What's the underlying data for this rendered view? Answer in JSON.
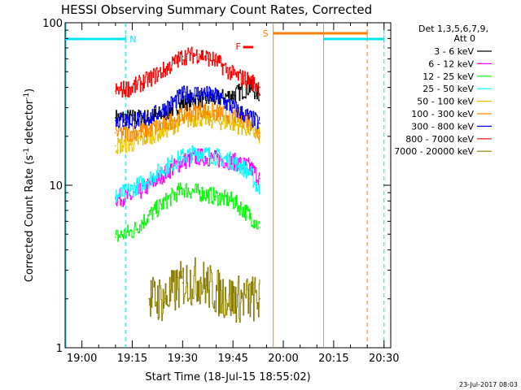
{
  "chart_data": {
    "type": "line",
    "title": "HESSI Observing Summary Count Rates, Corrected",
    "xlabel": "Start Time (18-Jul-15 18:55:02)",
    "ylabel": "Corrected Count Rate (s",
    "ylabel_sup1": "-1",
    "ylabel_mid": " detector",
    "ylabel_sup2": "-1",
    "ylabel_end": ")",
    "y_scale": "log",
    "ylim": [
      1,
      100
    ],
    "y_ticks": [
      {
        "value": 1,
        "label": "1"
      },
      {
        "value": 10,
        "label": "10"
      },
      {
        "value": 100,
        "label": "100"
      }
    ],
    "xlim": [
      "18:55",
      "20:32"
    ],
    "x_ticks": [
      {
        "value": "19:00",
        "label": "19:00"
      },
      {
        "value": "19:15",
        "label": "19:15"
      },
      {
        "value": "19:30",
        "label": "19:30"
      },
      {
        "value": "19:45",
        "label": "19:45"
      },
      {
        "value": "20:00",
        "label": "20:00"
      },
      {
        "value": "20:15",
        "label": "20:15"
      },
      {
        "value": "20:30",
        "label": "20:30"
      }
    ],
    "legend_header": [
      "Det 1,3,5,6,7,9,",
      "Att 0"
    ],
    "legend_position": "right",
    "series": [
      {
        "name": "3 - 6 keV",
        "color": "#000000",
        "x": [
          "19:10",
          "19:15",
          "19:20",
          "19:25",
          "19:30",
          "19:35",
          "19:40",
          "19:45",
          "19:50",
          "19:53"
        ],
        "values": [
          26,
          26,
          26,
          28,
          32,
          34,
          34,
          36,
          40,
          36
        ]
      },
      {
        "name": "6 - 12 keV",
        "color": "#ff00ff",
        "x": [
          "19:10",
          "19:15",
          "19:20",
          "19:25",
          "19:30",
          "19:35",
          "19:40",
          "19:45",
          "19:50",
          "19:53"
        ],
        "values": [
          8.3,
          8.5,
          10,
          12,
          14,
          15,
          14.5,
          14,
          13,
          11
        ]
      },
      {
        "name": "12 - 25 keV",
        "color": "#00ff00",
        "x": [
          "19:10",
          "19:15",
          "19:20",
          "19:25",
          "19:30",
          "19:35",
          "19:40",
          "19:45",
          "19:50",
          "19:53"
        ],
        "values": [
          4.8,
          5.2,
          6.5,
          8.0,
          9.5,
          9.0,
          8.5,
          8.0,
          6.5,
          5.5
        ]
      },
      {
        "name": "25 - 50 keV",
        "color": "#00ffff",
        "x": [
          "19:10",
          "19:15",
          "19:20",
          "19:25",
          "19:30",
          "19:35",
          "19:40",
          "19:45",
          "19:50",
          "19:53"
        ],
        "values": [
          8.5,
          9.5,
          11,
          13,
          15,
          16,
          15,
          14,
          12,
          9
        ]
      },
      {
        "name": "50 - 100 keV",
        "color": "#e8c000",
        "x": [
          "19:10",
          "19:15",
          "19:20",
          "19:25",
          "19:30",
          "19:35",
          "19:40",
          "19:45",
          "19:50",
          "19:53"
        ],
        "values": [
          17.5,
          18,
          20,
          22,
          25,
          26,
          25,
          24,
          22,
          20
        ]
      },
      {
        "name": "100 - 300 keV",
        "color": "#ff8800",
        "x": [
          "19:10",
          "19:15",
          "19:20",
          "19:25",
          "19:30",
          "19:35",
          "19:40",
          "19:45",
          "19:50",
          "19:53"
        ],
        "values": [
          21,
          21,
          22,
          24,
          27,
          29,
          28,
          27,
          25,
          21
        ]
      },
      {
        "name": "300 - 800 keV",
        "color": "#0000ff",
        "x": [
          "19:10",
          "19:15",
          "19:20",
          "19:25",
          "19:30",
          "19:35",
          "19:40",
          "19:45",
          "19:50",
          "19:53"
        ],
        "values": [
          25,
          25,
          26,
          30,
          36,
          37,
          35,
          30,
          26,
          24
        ]
      },
      {
        "name": "800 - 7000 keV",
        "color": "#ff0000",
        "x": [
          "19:10",
          "19:15",
          "19:20",
          "19:25",
          "19:30",
          "19:35",
          "19:40",
          "19:45",
          "19:50",
          "19:53"
        ],
        "values": [
          38,
          40,
          45,
          52,
          62,
          64,
          58,
          48,
          44,
          40
        ]
      },
      {
        "name": "7000 - 20000 keV",
        "color": "#8b7d00",
        "x": [
          "19:20",
          "19:25",
          "19:30",
          "19:35",
          "19:40",
          "19:45",
          "19:50",
          "19:53"
        ],
        "values": [
          2.0,
          2.0,
          2.5,
          2.6,
          2.2,
          2.0,
          2.0,
          2.0
        ]
      }
    ],
    "annotations": [
      {
        "label": "N",
        "color": "#00e5ee",
        "value_start": "18:55",
        "value_end": "19:13",
        "marker": "19:13"
      },
      {
        "label": "F",
        "color": "#ff0000",
        "value_start": "19:48",
        "value_end": "19:51"
      },
      {
        "label": "S",
        "color": "#ff8000",
        "value_start": "19:57",
        "value_end": "20:25",
        "marker": "20:25"
      },
      {
        "label": "",
        "color": "#00e5ee",
        "value_start": "20:12",
        "value_end": "20:30",
        "marker": "20:30"
      }
    ]
  },
  "timestamp": "23-Jul-2017 08:03"
}
